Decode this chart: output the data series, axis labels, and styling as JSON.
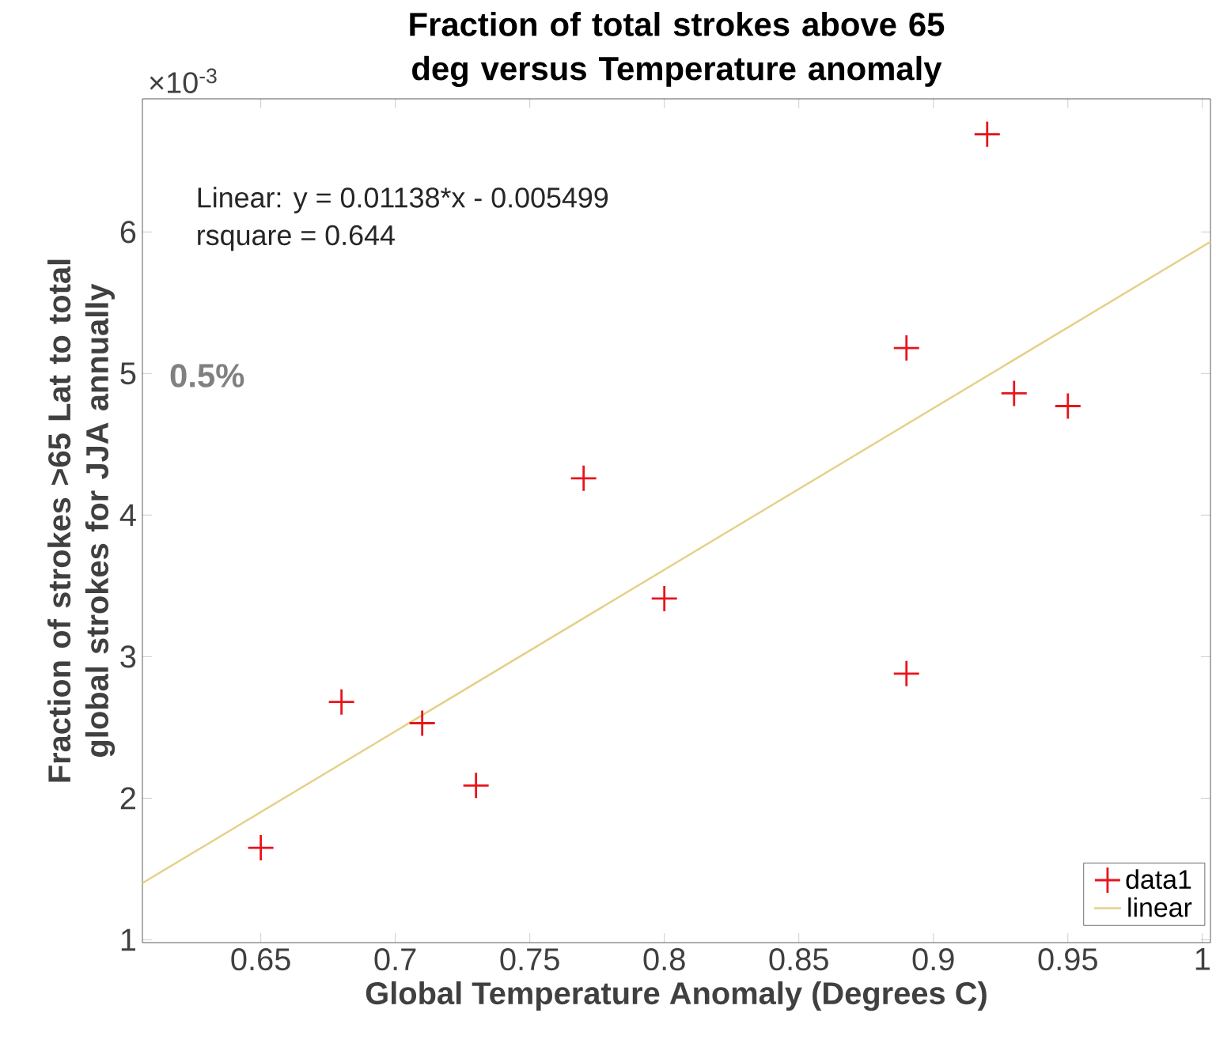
{
  "chart_data": {
    "type": "scatter",
    "title": "Fraction of total strokes above 65 deg versus Temperature anomaly",
    "xlabel": "Global Temperature Anomaly (Degrees C)",
    "ylabel": "Fraction of strokes >65 Lat to total global strokes for JJA annually",
    "x": [
      0.65,
      0.68,
      0.71,
      0.73,
      0.77,
      0.8,
      0.89,
      0.89,
      0.92,
      0.93,
      0.95
    ],
    "series": [
      {
        "name": "data1",
        "color": "#e8141c",
        "marker": "cross",
        "values": [
          1.65,
          2.68,
          2.53,
          2.09,
          4.26,
          3.41,
          2.88,
          5.18,
          6.69,
          4.86,
          4.77
        ]
      },
      {
        "name": "linear",
        "type": "line",
        "color": "#e6cf86",
        "line_style": "solid",
        "marker": "none",
        "x": [
          0.606,
          1.003
        ],
        "values": [
          1.4,
          5.93
        ]
      }
    ],
    "xlim": [
      0.606,
      1.003
    ],
    "ylim": [
      0.98,
      6.94
    ],
    "xticks": [
      0.65,
      0.7,
      0.75,
      0.8,
      0.85,
      0.9,
      0.95,
      1
    ],
    "yticks": [
      1,
      2,
      3,
      4,
      5,
      6
    ],
    "grid": false,
    "legend": "bottom right",
    "annotations": [
      "Linear:  y = 0.01138*x - 0.005499",
      "rsquare = 0.644",
      "0.5%",
      "×10$^{-3}$"
    ]
  }
}
